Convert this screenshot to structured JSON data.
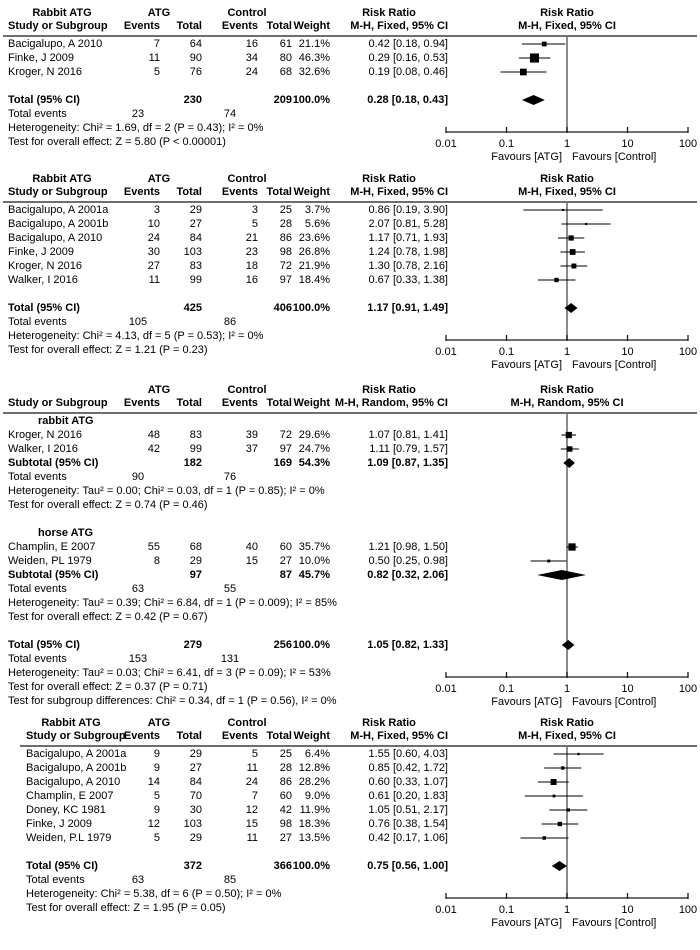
{
  "colors": {
    "marker": "#000000",
    "ci_line": "#000000",
    "summary_diamond": "#000000",
    "grid_line": "#6e6e6e",
    "axis": "#1a1a1a",
    "text": "#000000",
    "background": "#ffffff"
  },
  "chart_data": {
    "type": "forest",
    "x_axis": {
      "scale": "log10",
      "min": 0.01,
      "max": 100,
      "ticks": [
        0.01,
        0.1,
        1,
        10,
        100
      ],
      "tick_labels": [
        "0.01",
        "0.1",
        "1",
        "10",
        "100"
      ],
      "favours_left": "Favours [ATG]",
      "favours_right": "Favours [Control]"
    },
    "panels": [
      {
        "group_label": "Rabbit ATG",
        "columns": {
          "group1": "ATG",
          "group2": "Control",
          "study": "Study or Subgroup",
          "events": "Events",
          "total": "Total",
          "weight": "Weight",
          "effect": "Risk Ratio",
          "method": "M-H, Fixed, 95% CI"
        },
        "rows": [
          {
            "type": "study",
            "name": "Bacigalupo, A 2010",
            "e1": "7",
            "t1": "64",
            "e2": "16",
            "t2": "61",
            "w": "21.1%",
            "rr": "0.42 [0.18, 0.94]",
            "est": 0.42,
            "lo": 0.18,
            "hi": 0.94
          },
          {
            "type": "study",
            "name": "Finke, J 2009",
            "e1": "11",
            "t1": "90",
            "e2": "34",
            "t2": "80",
            "w": "46.3%",
            "rr": "0.29 [0.16, 0.53]",
            "est": 0.29,
            "lo": 0.16,
            "hi": 0.53
          },
          {
            "type": "study",
            "name": "Kroger, N 2016",
            "e1": "5",
            "t1": "76",
            "e2": "24",
            "t2": "68",
            "w": "32.6%",
            "rr": "0.19 [0.08, 0.46]",
            "est": 0.19,
            "lo": 0.08,
            "hi": 0.46
          },
          {
            "type": "gap"
          },
          {
            "type": "total",
            "name": "Total (95% CI)",
            "t1": "230",
            "t2": "209",
            "w": "100.0%",
            "rr": "0.28 [0.18, 0.43]",
            "est": 0.28,
            "lo": 0.18,
            "hi": 0.43
          },
          {
            "type": "tev",
            "name": "Total events",
            "e1": "23",
            "e2": "74"
          },
          {
            "type": "note",
            "text": "Heterogeneity: Chi² = 1.69, df = 2 (P = 0.43); I² = 0%"
          },
          {
            "type": "note",
            "text": "Test for overall effect: Z = 5.80 (P < 0.00001)"
          }
        ]
      },
      {
        "group_label": "Rabbit ATG",
        "columns": {
          "group1": "ATG",
          "group2": "Control",
          "study": "Study or Subgroup",
          "events": "Events",
          "total": "Total",
          "weight": "Weight",
          "effect": "Risk Ratio",
          "method": "M-H, Fixed, 95% CI"
        },
        "rows": [
          {
            "type": "study",
            "name": "Bacigalupo, A 2001a",
            "e1": "3",
            "t1": "29",
            "e2": "3",
            "t2": "25",
            "w": "3.7%",
            "rr": "0.86 [0.19, 3.90]",
            "est": 0.86,
            "lo": 0.19,
            "hi": 3.9
          },
          {
            "type": "study",
            "name": "Bacigalupo, A 2001b",
            "e1": "10",
            "t1": "27",
            "e2": "5",
            "t2": "28",
            "w": "5.6%",
            "rr": "2.07 [0.81, 5.28]",
            "est": 2.07,
            "lo": 0.81,
            "hi": 5.28
          },
          {
            "type": "study",
            "name": "Bacigalupo, A 2010",
            "e1": "24",
            "t1": "84",
            "e2": "21",
            "t2": "86",
            "w": "23.6%",
            "rr": "1.17 [0.71, 1.93]",
            "est": 1.17,
            "lo": 0.71,
            "hi": 1.93
          },
          {
            "type": "study",
            "name": "Finke, J 2009",
            "e1": "30",
            "t1": "103",
            "e2": "23",
            "t2": "98",
            "w": "26.8%",
            "rr": "1.24 [0.78, 1.98]",
            "est": 1.24,
            "lo": 0.78,
            "hi": 1.98
          },
          {
            "type": "study",
            "name": "Kroger, N 2016",
            "e1": "27",
            "t1": "83",
            "e2": "18",
            "t2": "72",
            "w": "21.9%",
            "rr": "1.30 [0.78, 2.16]",
            "est": 1.3,
            "lo": 0.78,
            "hi": 2.16
          },
          {
            "type": "study",
            "name": "Walker, I 2016",
            "e1": "11",
            "t1": "99",
            "e2": "16",
            "t2": "97",
            "w": "18.4%",
            "rr": "0.67 [0.33, 1.38]",
            "est": 0.67,
            "lo": 0.33,
            "hi": 1.38
          },
          {
            "type": "gap"
          },
          {
            "type": "total",
            "name": "Total (95% CI)",
            "t1": "425",
            "t2": "406",
            "w": "100.0%",
            "rr": "1.17 [0.91, 1.49]",
            "est": 1.17,
            "lo": 0.91,
            "hi": 1.49
          },
          {
            "type": "tev",
            "name": "Total events",
            "e1": "105",
            "e2": "86"
          },
          {
            "type": "note",
            "text": "Heterogeneity: Chi² = 4.13, df = 5 (P = 0.53); I² = 0%"
          },
          {
            "type": "note",
            "text": "Test for overall effect: Z = 1.21 (P = 0.23)"
          }
        ]
      },
      {
        "group_label": "",
        "columns": {
          "group1": "ATG",
          "group2": "Control",
          "study": "Study or Subgroup",
          "events": "Events",
          "total": "Total",
          "weight": "Weight",
          "effect": "Risk Ratio",
          "method": "M-H, Random, 95% CI"
        },
        "rows": [
          {
            "type": "subhead",
            "name": "rabbit ATG"
          },
          {
            "type": "study",
            "name": "Kroger, N 2016",
            "e1": "48",
            "t1": "83",
            "e2": "39",
            "t2": "72",
            "w": "29.6%",
            "rr": "1.07 [0.81, 1.41]",
            "est": 1.07,
            "lo": 0.81,
            "hi": 1.41
          },
          {
            "type": "study",
            "name": "Walker, I 2016",
            "e1": "42",
            "t1": "99",
            "e2": "37",
            "t2": "97",
            "w": "24.7%",
            "rr": "1.11 [0.79, 1.57]",
            "est": 1.11,
            "lo": 0.79,
            "hi": 1.57
          },
          {
            "type": "total",
            "name": "Subtotal (95% CI)",
            "t1": "182",
            "t2": "169",
            "w": "54.3%",
            "rr": "1.09 [0.87, 1.35]",
            "est": 1.09,
            "lo": 0.87,
            "hi": 1.35
          },
          {
            "type": "tev",
            "name": "Total events",
            "e1": "90",
            "e2": "76"
          },
          {
            "type": "note",
            "text": "Heterogeneity: Tau² = 0.00; Chi² = 0.03, df = 1 (P = 0.85); I² = 0%"
          },
          {
            "type": "note",
            "text": "Test for overall effect: Z = 0.74 (P = 0.46)"
          },
          {
            "type": "gap"
          },
          {
            "type": "subhead",
            "name": "horse ATG"
          },
          {
            "type": "study",
            "name": "Champlin, E 2007",
            "e1": "55",
            "t1": "68",
            "e2": "40",
            "t2": "60",
            "w": "35.7%",
            "rr": "1.21 [0.98, 1.50]",
            "est": 1.21,
            "lo": 0.98,
            "hi": 1.5
          },
          {
            "type": "study",
            "name": "Weiden, PL 1979",
            "e1": "8",
            "t1": "29",
            "e2": "15",
            "t2": "27",
            "w": "10.0%",
            "rr": "0.50 [0.25, 0.98]",
            "est": 0.5,
            "lo": 0.25,
            "hi": 0.98
          },
          {
            "type": "total",
            "name": "Subtotal (95% CI)",
            "t1": "97",
            "t2": "87",
            "w": "45.7%",
            "rr": "0.82 [0.32, 2.06]",
            "est": 0.82,
            "lo": 0.32,
            "hi": 2.06
          },
          {
            "type": "tev",
            "name": "Total events",
            "e1": "63",
            "e2": "55"
          },
          {
            "type": "note",
            "text": "Heterogeneity: Tau² = 0.39; Chi² = 6.84, df = 1 (P = 0.009); I² = 85%"
          },
          {
            "type": "note",
            "text": "Test for overall effect: Z = 0.42 (P = 0.67)"
          },
          {
            "type": "gap"
          },
          {
            "type": "total",
            "name": "Total (95% CI)",
            "t1": "279",
            "t2": "256",
            "w": "100.0%",
            "rr": "1.05 [0.82, 1.33]",
            "est": 1.05,
            "lo": 0.82,
            "hi": 1.33
          },
          {
            "type": "tev",
            "name": "Total events",
            "e1": "153",
            "e2": "131"
          },
          {
            "type": "note",
            "text": "Heterogeneity: Tau² = 0.03; Chi² = 6.41, df = 3 (P = 0.09); I² = 53%"
          },
          {
            "type": "note",
            "text": "Test for overall effect: Z = 0.37 (P = 0.71)"
          },
          {
            "type": "note",
            "text": "Test for subgroup differences: Chi² = 0.34, df = 1 (P = 0.56), I² = 0%"
          }
        ]
      },
      {
        "group_label": "Rabbit ATG",
        "columns": {
          "group1": "ATG",
          "group2": "Control",
          "study": "Study or Subgroup",
          "events": "Events",
          "total": "Total",
          "weight": "Weight",
          "effect": "Risk Ratio",
          "method": "M-H, Fixed, 95% CI"
        },
        "rows": [
          {
            "type": "study",
            "name": "Bacigalupo, A 2001a",
            "e1": "9",
            "t1": "29",
            "e2": "5",
            "t2": "25",
            "w": "6.4%",
            "rr": "1.55 [0.60, 4.03]",
            "est": 1.55,
            "lo": 0.6,
            "hi": 4.03
          },
          {
            "type": "study",
            "name": "Bacigalupo, A 2001b",
            "e1": "9",
            "t1": "27",
            "e2": "11",
            "t2": "28",
            "w": "12.8%",
            "rr": "0.85 [0.42, 1.72]",
            "est": 0.85,
            "lo": 0.42,
            "hi": 1.72
          },
          {
            "type": "study",
            "name": "Bacigalupo, A 2010",
            "e1": "14",
            "t1": "84",
            "e2": "24",
            "t2": "86",
            "w": "28.2%",
            "rr": "0.60 [0.33, 1.07]",
            "est": 0.6,
            "lo": 0.33,
            "hi": 1.07
          },
          {
            "type": "study",
            "name": "Champlin, E 2007",
            "e1": "5",
            "t1": "70",
            "e2": "7",
            "t2": "60",
            "w": "9.0%",
            "rr": "0.61 [0.20, 1.83]",
            "est": 0.61,
            "lo": 0.2,
            "hi": 1.83
          },
          {
            "type": "study",
            "name": "Doney, KC 1981",
            "e1": "9",
            "t1": "30",
            "e2": "12",
            "t2": "42",
            "w": "11.9%",
            "rr": "1.05 [0.51, 2.17]",
            "est": 1.05,
            "lo": 0.51,
            "hi": 2.17
          },
          {
            "type": "study",
            "name": "Finke, J 2009",
            "e1": "12",
            "t1": "103",
            "e2": "15",
            "t2": "98",
            "w": "18.3%",
            "rr": "0.76 [0.38, 1.54]",
            "est": 0.76,
            "lo": 0.38,
            "hi": 1.54
          },
          {
            "type": "study",
            "name": "Weiden, P.L 1979",
            "e1": "5",
            "t1": "29",
            "e2": "11",
            "t2": "27",
            "w": "13.5%",
            "rr": "0.42 [0.17, 1.06]",
            "est": 0.42,
            "lo": 0.17,
            "hi": 1.06
          },
          {
            "type": "gap"
          },
          {
            "type": "total",
            "name": "Total (95% CI)",
            "t1": "372",
            "t2": "366",
            "w": "100.0%",
            "rr": "0.75 [0.56, 1.00]",
            "est": 0.75,
            "lo": 0.56,
            "hi": 1.0
          },
          {
            "type": "tev",
            "name": "Total events",
            "e1": "63",
            "e2": "85"
          },
          {
            "type": "note",
            "text": "Heterogeneity: Chi² = 5.38, df = 6 (P = 0.50); I² = 0%"
          },
          {
            "type": "note",
            "text": "Test for overall effect: Z = 1.95 (P = 0.05)"
          }
        ]
      }
    ]
  }
}
